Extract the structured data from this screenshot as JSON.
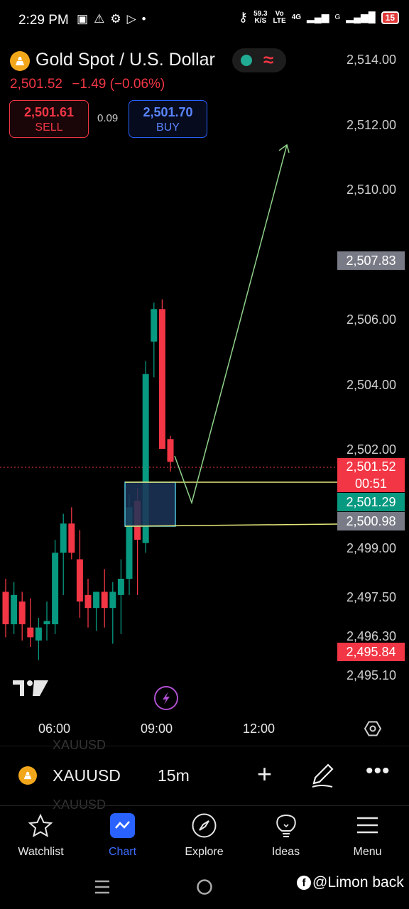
{
  "status_bar": {
    "time": "2:29 PM",
    "speed_top": "59.3",
    "speed_unit": "K/S",
    "volte_top": "Vo",
    "volte_bottom": "LTE",
    "network": "4G",
    "signal_g": "G",
    "battery": "15"
  },
  "header": {
    "title": "Gold Spot / U.S. Dollar",
    "price": "2,501.52",
    "change": "−1.49",
    "change_pct": "(−0.06%)",
    "sell_price": "2,501.61",
    "sell_label": "SELL",
    "spread": "0.09",
    "buy_price": "2,501.70",
    "buy_label": "BUY",
    "market_status_icon": "market-open-dot",
    "pill_icon": "wave-icon"
  },
  "y_axis": {
    "labels": [
      "2,514.00",
      "2,512.00",
      "2,510.00",
      "2,506.00",
      "2,504.00",
      "2,502.00",
      "2,499.00",
      "2,497.50",
      "2,496.30",
      "2,495.10"
    ],
    "tag_high": "2,507.83",
    "tag_last_price": "2,501.52",
    "tag_countdown": "00:51",
    "tag_green": "2,501.29",
    "tag_grey": "2,500.98",
    "tag_low": "2,495.84"
  },
  "x_axis": {
    "labels": [
      "06:00",
      "09:00",
      "12:00"
    ]
  },
  "chart_data": {
    "type": "candlestick",
    "interval": "15m",
    "candles": [
      {
        "o": 2497.6,
        "h": 2498.0,
        "l": 2496.2,
        "c": 2496.6
      },
      {
        "o": 2496.6,
        "h": 2497.9,
        "l": 2496.3,
        "c": 2497.5
      },
      {
        "o": 2497.3,
        "h": 2497.6,
        "l": 2496.1,
        "c": 2496.6
      },
      {
        "o": 2496.5,
        "h": 2497.4,
        "l": 2495.9,
        "c": 2496.2
      },
      {
        "o": 2496.1,
        "h": 2496.8,
        "l": 2495.5,
        "c": 2496.5
      },
      {
        "o": 2496.6,
        "h": 2497.3,
        "l": 2496.1,
        "c": 2496.7
      },
      {
        "o": 2496.6,
        "h": 2499.2,
        "l": 2496.3,
        "c": 2498.8
      },
      {
        "o": 2498.8,
        "h": 2500.0,
        "l": 2497.5,
        "c": 2499.7
      },
      {
        "o": 2499.7,
        "h": 2500.2,
        "l": 2498.6,
        "c": 2498.8
      },
      {
        "o": 2498.6,
        "h": 2499.5,
        "l": 2496.8,
        "c": 2497.3
      },
      {
        "o": 2497.5,
        "h": 2498.0,
        "l": 2496.5,
        "c": 2497.1
      },
      {
        "o": 2497.1,
        "h": 2497.6,
        "l": 2496.4,
        "c": 2497.6
      },
      {
        "o": 2497.6,
        "h": 2498.3,
        "l": 2496.5,
        "c": 2497.1
      },
      {
        "o": 2497.1,
        "h": 2497.9,
        "l": 2496.0,
        "c": 2497.6
      },
      {
        "o": 2497.5,
        "h": 2498.6,
        "l": 2496.3,
        "c": 2498.0
      },
      {
        "o": 2498.0,
        "h": 2500.6,
        "l": 2497.5,
        "c": 2500.2
      },
      {
        "o": 2500.4,
        "h": 2500.8,
        "l": 2497.5,
        "c": 2499.2
      },
      {
        "o": 2499.1,
        "h": 2504.7,
        "l": 2498.8,
        "c": 2504.3
      },
      {
        "o": 2505.3,
        "h": 2506.5,
        "l": 2504.2,
        "c": 2506.3
      },
      {
        "o": 2506.3,
        "h": 2506.6,
        "l": 2502.0,
        "c": 2502.0
      },
      {
        "o": 2502.3,
        "h": 2502.4,
        "l": 2501.3,
        "c": 2501.6
      }
    ],
    "annotations": {
      "zone_top": 2501.29,
      "zone_bottom": 2500.98,
      "projection_target": 2511.6
    }
  },
  "bottom_bar": {
    "symbol": "XAUUSD",
    "interval": "15m",
    "ghost_text": "XAUUSD"
  },
  "nav": {
    "items": [
      {
        "label": "Watchlist",
        "icon": "star-icon"
      },
      {
        "label": "Chart",
        "icon": "chart-icon"
      },
      {
        "label": "Explore",
        "icon": "compass-icon"
      },
      {
        "label": "Ideas",
        "icon": "lightbulb-icon"
      },
      {
        "label": "Menu",
        "icon": "hamburger-icon"
      }
    ]
  },
  "watermark": "@Limon back",
  "colors": {
    "up": "#089981",
    "down": "#f23645",
    "accent": "#2962ff"
  }
}
